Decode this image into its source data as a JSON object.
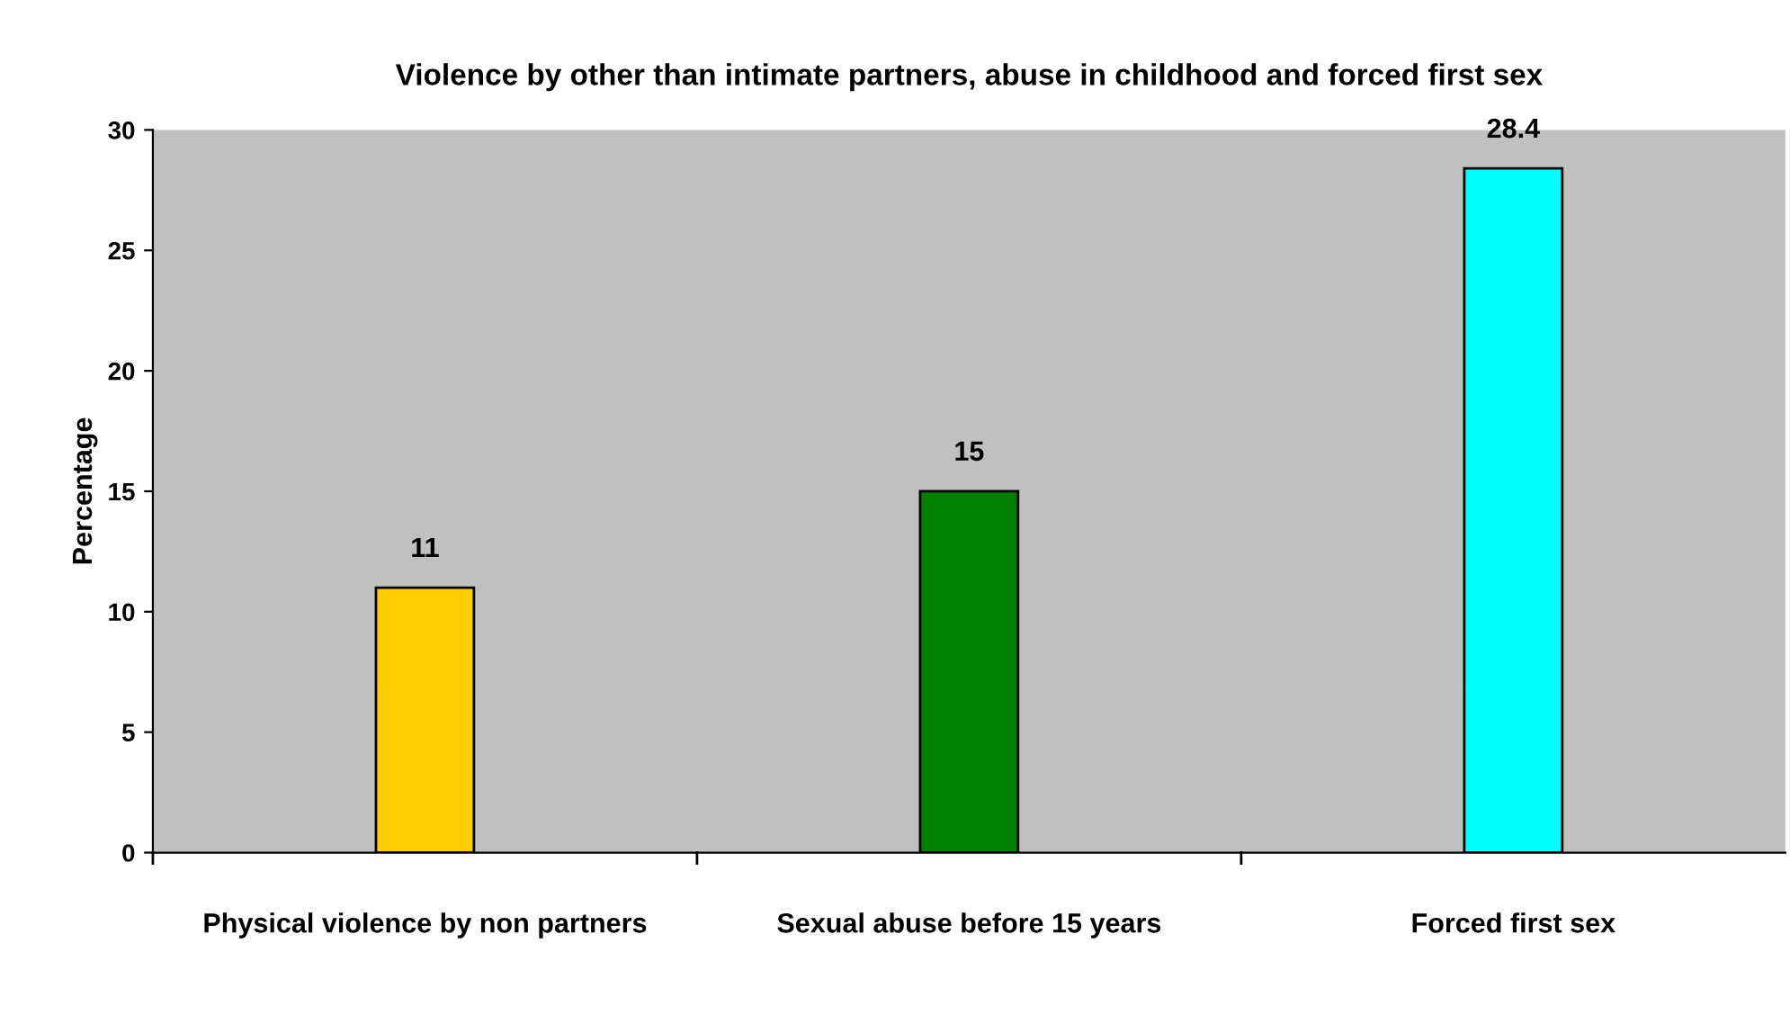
{
  "chart_data": {
    "type": "bar",
    "title": "Violence by other than intimate partners, abuse in childhood and forced first sex",
    "ylabel": "Percentage",
    "categories": [
      "Physical violence by non partners",
      "Sexual abuse before 15 years",
      "Forced first sex"
    ],
    "values": [
      11,
      15,
      28.4
    ],
    "colors": [
      "#ffcc00",
      "#008000",
      "#00ffff"
    ],
    "ylim": [
      0,
      30
    ],
    "yticks": [
      0,
      5,
      10,
      15,
      20,
      25,
      30
    ],
    "grid": false,
    "data_labels": true
  }
}
